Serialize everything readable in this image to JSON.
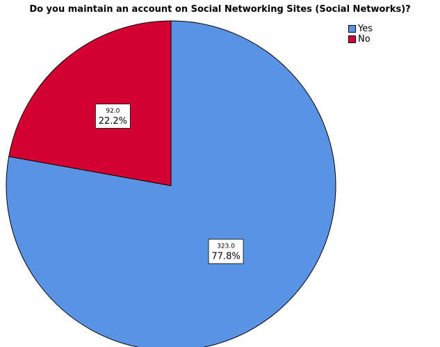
{
  "chart_data": {
    "type": "pie",
    "title": "Do you maintain an account on Social Networking Sites (Social Networks)?",
    "categories": [
      "Yes",
      "No"
    ],
    "values": [
      323.0,
      92.0
    ],
    "value_labels": [
      "323.0",
      "92.0"
    ],
    "percent_labels": [
      "77.8%",
      "22.2%"
    ],
    "colors": [
      "#5a93e3",
      "#d50032"
    ],
    "start_angle_deg": 0,
    "direction": "clockwise",
    "legend": {
      "position": "top-right",
      "items": [
        "Yes",
        "No"
      ]
    }
  }
}
